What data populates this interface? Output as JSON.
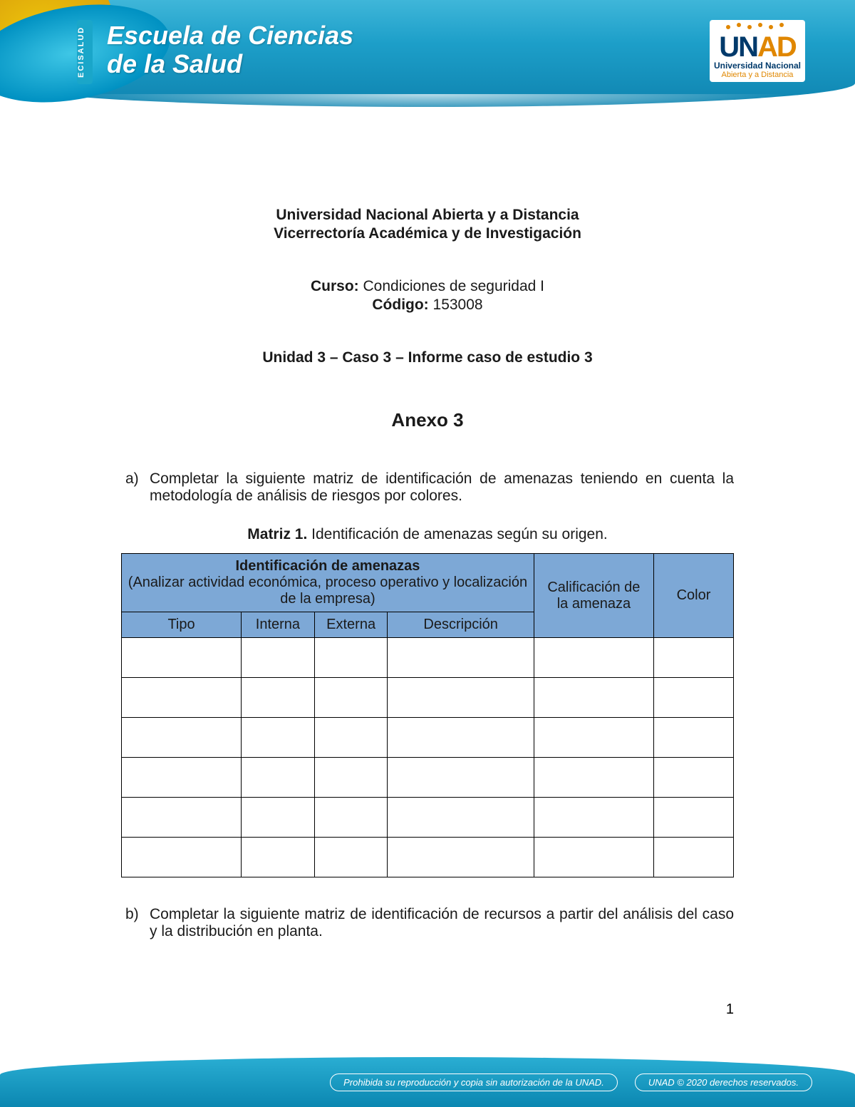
{
  "header": {
    "ecisalud_tab": "ECISALUD",
    "school_line1": "Escuela de Ciencias",
    "school_line2": "de la Salud",
    "unad_mark_un": "UN",
    "unad_mark_ad": "AD",
    "unad_sub1": "Universidad Nacional",
    "unad_sub2": "Abierta y a Distancia"
  },
  "doc": {
    "university": "Universidad Nacional Abierta y a Distancia",
    "vicerrectoria": "Vicerrectoría Académica y de Investigación",
    "curso_label": "Curso:",
    "curso_value": " Condiciones de seguridad I",
    "codigo_label": "Código:",
    "codigo_value": " 153008",
    "unit_line": "Unidad 3 – Caso 3 – Informe caso de estudio 3",
    "anexo": "Anexo 3",
    "item_a_marker": "a)",
    "item_a_text": "Completar la siguiente matriz de identificación de amenazas teniendo en cuenta la metodología de análisis de riesgos por colores.",
    "matrix_caption_bold": "Matriz 1.",
    "matrix_caption_rest": " Identificación de amenazas según su origen.",
    "item_b_marker": "b)",
    "item_b_text": "Completar la siguiente matriz de identificación de recursos a partir del análisis del caso y la distribución en planta."
  },
  "table": {
    "header_bg": "#7da8d6",
    "border_color": "#000000",
    "group_title": "Identificación de amenazas",
    "group_sub": "(Analizar actividad económica, proceso operativo y localización de la empresa)",
    "col_tipo": "Tipo",
    "col_interna": "Interna",
    "col_externa": "Externa",
    "col_desc": "Descripción",
    "col_calif": "Calificación de la amenaza",
    "col_color": "Color",
    "body_row_count": 6
  },
  "page_number": "1",
  "footer": {
    "left_pill": "Prohibida su reproducción y copia sin autorización de la UNAD.",
    "right_pill": "UNAD © 2020 derechos reservados."
  },
  "colors": {
    "banner_gradient_top": "#3fb6d9",
    "banner_gradient_mid": "#1d9fc9",
    "banner_gradient_bot": "#0f84b0",
    "accent_yellow": "#f5c400",
    "unad_blue": "#003a6b",
    "unad_orange": "#e08700",
    "text": "#1a1a1a",
    "page_bg": "#ffffff"
  }
}
